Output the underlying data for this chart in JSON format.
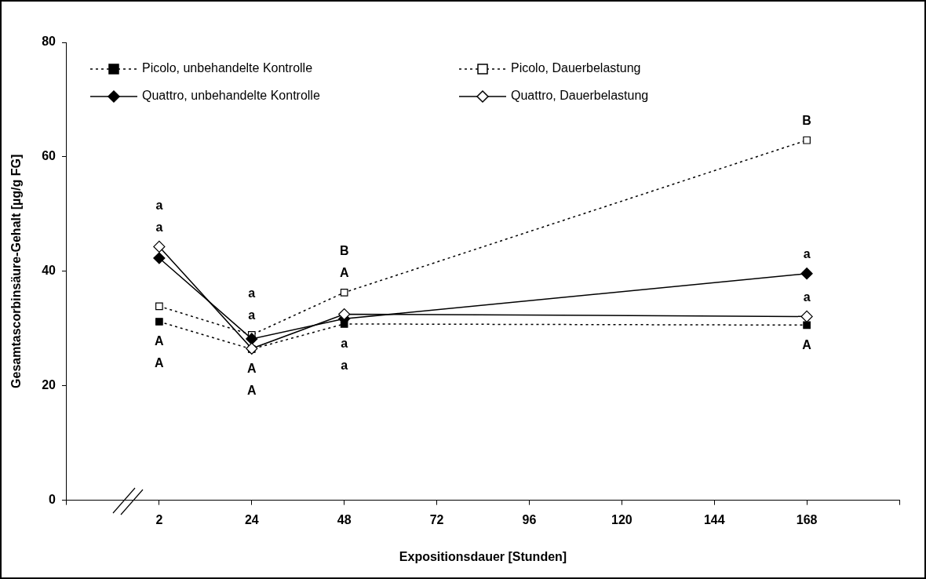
{
  "chart_data": {
    "type": "line",
    "xlabel": "Expositionsdauer [Stunden]",
    "ylabel": "Gesamtascorbinsäure-Gehalt [µg/g FG]",
    "categories": [
      null,
      "2",
      "24",
      "48",
      "72",
      "96",
      "120",
      "144",
      "168",
      null
    ],
    "ylim": [
      0,
      80
    ],
    "yticks": [
      0,
      20,
      40,
      60,
      80
    ],
    "grid": false,
    "legend": "top left",
    "series": [
      {
        "name": "Picolo, unbehandelte Kontrolle",
        "color": "#000000",
        "marker": "square",
        "line_style": "dotted",
        "values": [
          null,
          31.2,
          26.4,
          30.8,
          null,
          null,
          null,
          null,
          30.6,
          null
        ]
      },
      {
        "name": "Picolo, Dauerbelastung",
        "color": "#000000",
        "marker": "square",
        "line_style": "dotted",
        "values": [
          null,
          33.9,
          28.9,
          36.3,
          null,
          null,
          null,
          null,
          62.9,
          null
        ]
      },
      {
        "name": "Quattro, unbehandelte Kontrolle",
        "color": "#000000",
        "marker": "diamond",
        "line_style": "solid",
        "values": [
          null,
          42.3,
          28.2,
          31.7,
          null,
          null,
          null,
          null,
          39.6,
          null
        ]
      },
      {
        "name": "Quattro, Dauerbelastung",
        "color": "#000000",
        "marker": "diamond",
        "line_style": "solid",
        "values": [
          null,
          44.3,
          26.5,
          32.5,
          null,
          null,
          null,
          null,
          32.1,
          null
        ]
      }
    ],
    "annotations": [
      {
        "text": "a",
        "x": "2",
        "y": 44.3
      },
      {
        "text": "a",
        "x": "2",
        "y": 44.3
      },
      {
        "text": "A",
        "x": "2",
        "y": 31.2
      },
      {
        "text": "A",
        "x": "2",
        "y": 31.2
      },
      {
        "text": "a",
        "x": "24",
        "y": 28.9
      },
      {
        "text": "a",
        "x": "24",
        "y": 28.9
      },
      {
        "text": "A",
        "x": "24",
        "y": 26.4
      },
      {
        "text": "A",
        "x": "24",
        "y": 26.4
      },
      {
        "text": "B",
        "x": "48",
        "y": 36.3
      },
      {
        "text": "A",
        "x": "48",
        "y": 36.3
      },
      {
        "text": "a",
        "x": "48",
        "y": 30.8
      },
      {
        "text": "a",
        "x": "48",
        "y": 30.8
      },
      {
        "text": "B",
        "x": "168",
        "y": 62.9
      },
      {
        "text": "a",
        "x": "168",
        "y": 39.6
      },
      {
        "text": "a",
        "x": "168",
        "y": 32.1
      },
      {
        "text": "A",
        "x": "168",
        "y": 30.6
      }
    ]
  }
}
